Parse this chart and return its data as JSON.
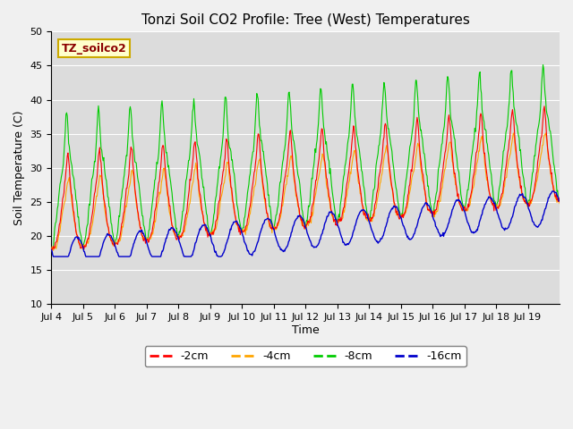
{
  "title": "Tonzi Soil CO2 Profile: Tree (West) Temperatures",
  "xlabel": "Time",
  "ylabel": "Soil Temperature (C)",
  "ylim": [
    10,
    50
  ],
  "label_box_text": "TZ_soilco2",
  "legend_labels": [
    "-2cm",
    "-4cm",
    "-8cm",
    "-16cm"
  ],
  "line_colors": [
    "#ff0000",
    "#ffa500",
    "#00cc00",
    "#0000cc"
  ],
  "fig_facecolor": "#f0f0f0",
  "ax_facecolor": "#dcdcdc",
  "x_tick_labels": [
    "Jul 4",
    "Jul 5",
    "Jul 6",
    "Jul 7",
    "Jul 8",
    "Jul 9",
    "Jul 10",
    "Jul 11",
    "Jul 12",
    "Jul 13",
    "Jul 14",
    "Jul 15",
    "Jul 16",
    "Jul 17",
    "Jul 18",
    "Jul 19"
  ],
  "y_ticks": [
    10,
    15,
    20,
    25,
    30,
    35,
    40,
    45,
    50
  ],
  "num_days": 16
}
